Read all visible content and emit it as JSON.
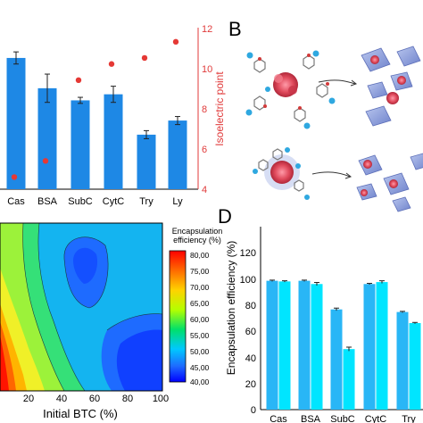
{
  "panels": {
    "A": {
      "label": "",
      "x_categories": [
        "Cas",
        "BSA",
        "SubC",
        "CytC",
        "Try",
        "Ly"
      ],
      "right_axis_label": "Isoelectric point",
      "right_ticks": [
        "4",
        "6",
        "8",
        "10",
        "12"
      ],
      "right_axis_color": "#e03a3a"
    },
    "B": {
      "label": "B"
    },
    "C": {
      "colorbar_title": [
        "Encapsulation",
        "efficiency (%)"
      ],
      "colorbar_ticks": [
        "80,00",
        "75,00",
        "70,00",
        "65,00",
        "60,00",
        "55,00",
        "50,00",
        "45,00",
        "40,00"
      ],
      "x_label": "Initial BTC (%)",
      "x_ticks": [
        "20",
        "40",
        "60",
        "80",
        "100"
      ]
    },
    "D": {
      "label": "D",
      "y_label": "Encapsulation efficiency (%)",
      "y_ticks": [
        "0",
        "20",
        "40",
        "60",
        "80",
        "100",
        "120"
      ],
      "x_categories": [
        "Cas",
        "BSA",
        "SubC",
        "CytC",
        "Try"
      ]
    }
  },
  "chart_data": [
    {
      "id": "A",
      "type": "bar",
      "categories": [
        "Cas",
        "BSA",
        "SubC",
        "CytC",
        "Try",
        "Ly"
      ],
      "series": [
        {
          "type": "bar",
          "axis": "left",
          "values": [
            10.5,
            9.0,
            8.4,
            8.7,
            6.7,
            7.4
          ],
          "errors": [
            0.3,
            0.7,
            0.15,
            0.4,
            0.2,
            0.2
          ],
          "color": "#1e88e5"
        },
        {
          "type": "scatter",
          "axis": "right",
          "name": "Isoelectric point",
          "values": [
            4.6,
            5.4,
            9.4,
            10.2,
            10.5,
            11.3
          ],
          "color": "#e53935"
        }
      ],
      "left_ylim": [
        4,
        12
      ],
      "right_ylim": [
        4,
        12
      ],
      "ylabel_right": "Isoelectric point"
    },
    {
      "id": "C",
      "type": "heatmap",
      "xlabel": "Initial BTC (%)",
      "xlim": [
        0,
        100
      ],
      "colorbar_range": [
        40,
        80
      ],
      "colorbar_title": "Encapsulation efficiency (%)"
    },
    {
      "id": "D",
      "type": "bar",
      "categories": [
        "Cas",
        "BSA",
        "SubC",
        "CytC",
        "Try"
      ],
      "series": [
        {
          "values": [
            99,
            99,
            77,
            96.5,
            75
          ],
          "errors": [
            0.5,
            0.5,
            1.0,
            0.5,
            0.5
          ],
          "color": "#29b6f6"
        },
        {
          "values": [
            98.5,
            96.5,
            46.5,
            98,
            66.5
          ],
          "errors": [
            0.5,
            1.2,
            1.5,
            1.0,
            0.5
          ],
          "color": "#00e5ff"
        }
      ],
      "ylabel": "Encapsulation efficiency (%)",
      "ylim": [
        0,
        120
      ]
    }
  ]
}
